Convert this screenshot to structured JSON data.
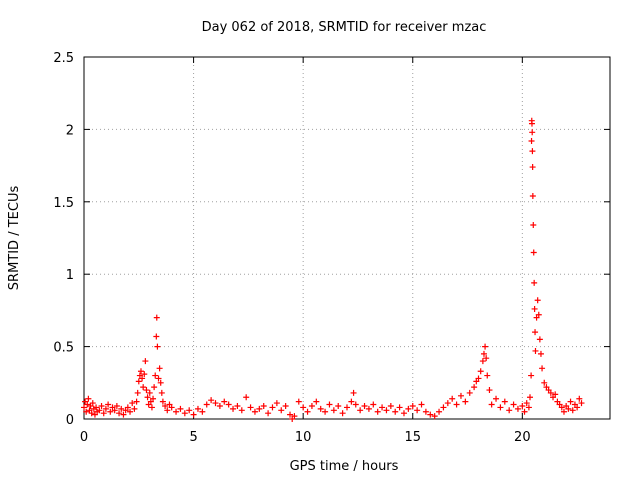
{
  "chart_data": {
    "type": "scatter",
    "title": "Day 062 of 2018, SRMTID for receiver mzac",
    "xlabel": "GPS time / hours",
    "ylabel": "SRMTID / TECUs",
    "xlim": [
      0,
      24
    ],
    "ylim": [
      0,
      2.5
    ],
    "grid": true,
    "marker": "+",
    "series_color": "#ff0000",
    "xticks": [
      0,
      5,
      10,
      15,
      20
    ],
    "xtick_labels": [
      "0",
      "5",
      "10",
      "15",
      "20"
    ],
    "yticks": [
      0,
      0.5,
      1,
      1.5,
      2,
      2.5
    ],
    "ytick_labels": [
      "0",
      "0.5",
      "1",
      "1.5",
      "2",
      "2.5"
    ],
    "series": [
      {
        "name": "SRMTID",
        "points": [
          [
            0.0,
            0.08
          ],
          [
            0.05,
            0.12
          ],
          [
            0.1,
            0.05
          ],
          [
            0.15,
            0.1
          ],
          [
            0.2,
            0.14
          ],
          [
            0.25,
            0.06
          ],
          [
            0.3,
            0.09
          ],
          [
            0.35,
            0.04
          ],
          [
            0.4,
            0.11
          ],
          [
            0.45,
            0.07
          ],
          [
            0.5,
            0.03
          ],
          [
            0.55,
            0.08
          ],
          [
            0.6,
            0.05
          ],
          [
            0.7,
            0.06
          ],
          [
            0.8,
            0.09
          ],
          [
            0.9,
            0.04
          ],
          [
            1.0,
            0.07
          ],
          [
            1.1,
            0.1
          ],
          [
            1.2,
            0.05
          ],
          [
            1.3,
            0.08
          ],
          [
            1.4,
            0.06
          ],
          [
            1.5,
            0.09
          ],
          [
            1.6,
            0.04
          ],
          [
            1.7,
            0.07
          ],
          [
            1.8,
            0.03
          ],
          [
            1.9,
            0.06
          ],
          [
            2.0,
            0.08
          ],
          [
            2.1,
            0.05
          ],
          [
            2.2,
            0.11
          ],
          [
            2.3,
            0.07
          ],
          [
            2.4,
            0.12
          ],
          [
            2.45,
            0.18
          ],
          [
            2.5,
            0.26
          ],
          [
            2.55,
            0.3
          ],
          [
            2.6,
            0.33
          ],
          [
            2.65,
            0.28
          ],
          [
            2.7,
            0.22
          ],
          [
            2.75,
            0.31
          ],
          [
            2.8,
            0.4
          ],
          [
            2.85,
            0.2
          ],
          [
            2.9,
            0.15
          ],
          [
            2.95,
            0.1
          ],
          [
            3.0,
            0.18
          ],
          [
            3.05,
            0.12
          ],
          [
            3.1,
            0.08
          ],
          [
            3.15,
            0.14
          ],
          [
            3.2,
            0.22
          ],
          [
            3.25,
            0.3
          ],
          [
            3.3,
            0.57
          ],
          [
            3.32,
            0.7
          ],
          [
            3.35,
            0.5
          ],
          [
            3.4,
            0.28
          ],
          [
            3.45,
            0.35
          ],
          [
            3.5,
            0.25
          ],
          [
            3.55,
            0.18
          ],
          [
            3.6,
            0.12
          ],
          [
            3.7,
            0.09
          ],
          [
            3.8,
            0.06
          ],
          [
            3.9,
            0.1
          ],
          [
            4.0,
            0.08
          ],
          [
            4.2,
            0.05
          ],
          [
            4.4,
            0.07
          ],
          [
            4.6,
            0.04
          ],
          [
            4.8,
            0.06
          ],
          [
            5.0,
            0.03
          ],
          [
            5.2,
            0.07
          ],
          [
            5.4,
            0.05
          ],
          [
            5.6,
            0.1
          ],
          [
            5.8,
            0.13
          ],
          [
            6.0,
            0.11
          ],
          [
            6.2,
            0.09
          ],
          [
            6.4,
            0.12
          ],
          [
            6.6,
            0.1
          ],
          [
            6.8,
            0.07
          ],
          [
            7.0,
            0.09
          ],
          [
            7.2,
            0.06
          ],
          [
            7.4,
            0.15
          ],
          [
            7.6,
            0.08
          ],
          [
            7.8,
            0.05
          ],
          [
            8.0,
            0.07
          ],
          [
            8.2,
            0.09
          ],
          [
            8.4,
            0.04
          ],
          [
            8.6,
            0.08
          ],
          [
            8.8,
            0.11
          ],
          [
            9.0,
            0.06
          ],
          [
            9.2,
            0.09
          ],
          [
            9.4,
            0.03
          ],
          [
            9.5,
            0.0
          ],
          [
            9.6,
            0.02
          ],
          [
            9.8,
            0.12
          ],
          [
            10.0,
            0.08
          ],
          [
            10.2,
            0.05
          ],
          [
            10.4,
            0.09
          ],
          [
            10.6,
            0.12
          ],
          [
            10.8,
            0.07
          ],
          [
            11.0,
            0.05
          ],
          [
            11.2,
            0.1
          ],
          [
            11.4,
            0.06
          ],
          [
            11.6,
            0.09
          ],
          [
            11.8,
            0.04
          ],
          [
            12.0,
            0.08
          ],
          [
            12.2,
            0.12
          ],
          [
            12.3,
            0.18
          ],
          [
            12.4,
            0.1
          ],
          [
            12.6,
            0.06
          ],
          [
            12.8,
            0.09
          ],
          [
            13.0,
            0.07
          ],
          [
            13.2,
            0.1
          ],
          [
            13.4,
            0.05
          ],
          [
            13.6,
            0.08
          ],
          [
            13.8,
            0.06
          ],
          [
            14.0,
            0.09
          ],
          [
            14.2,
            0.05
          ],
          [
            14.4,
            0.08
          ],
          [
            14.6,
            0.04
          ],
          [
            14.8,
            0.07
          ],
          [
            15.0,
            0.09
          ],
          [
            15.2,
            0.06
          ],
          [
            15.4,
            0.1
          ],
          [
            15.6,
            0.05
          ],
          [
            15.8,
            0.03
          ],
          [
            16.0,
            0.02
          ],
          [
            16.2,
            0.05
          ],
          [
            16.4,
            0.08
          ],
          [
            16.6,
            0.11
          ],
          [
            16.8,
            0.14
          ],
          [
            17.0,
            0.1
          ],
          [
            17.2,
            0.16
          ],
          [
            17.4,
            0.12
          ],
          [
            17.6,
            0.18
          ],
          [
            17.8,
            0.22
          ],
          [
            17.9,
            0.26
          ],
          [
            18.0,
            0.28
          ],
          [
            18.1,
            0.33
          ],
          [
            18.2,
            0.4
          ],
          [
            18.25,
            0.45
          ],
          [
            18.3,
            0.5
          ],
          [
            18.35,
            0.42
          ],
          [
            18.4,
            0.3
          ],
          [
            18.5,
            0.2
          ],
          [
            18.6,
            0.1
          ],
          [
            18.8,
            0.14
          ],
          [
            19.0,
            0.08
          ],
          [
            19.2,
            0.12
          ],
          [
            19.4,
            0.06
          ],
          [
            19.6,
            0.1
          ],
          [
            19.8,
            0.07
          ],
          [
            20.0,
            0.09
          ],
          [
            20.1,
            0.05
          ],
          [
            20.2,
            0.11
          ],
          [
            20.3,
            0.08
          ],
          [
            20.35,
            0.15
          ],
          [
            20.4,
            0.3
          ],
          [
            20.42,
            1.92
          ],
          [
            20.43,
            2.06
          ],
          [
            20.44,
            2.04
          ],
          [
            20.45,
            1.98
          ],
          [
            20.46,
            1.85
          ],
          [
            20.47,
            1.74
          ],
          [
            20.48,
            1.54
          ],
          [
            20.5,
            1.34
          ],
          [
            20.52,
            1.15
          ],
          [
            20.54,
            0.94
          ],
          [
            20.56,
            0.76
          ],
          [
            20.58,
            0.6
          ],
          [
            20.6,
            0.47
          ],
          [
            20.65,
            0.7
          ],
          [
            20.7,
            0.82
          ],
          [
            20.75,
            0.72
          ],
          [
            20.8,
            0.55
          ],
          [
            20.85,
            0.45
          ],
          [
            20.9,
            0.35
          ],
          [
            21.0,
            0.25
          ],
          [
            21.1,
            0.22
          ],
          [
            21.2,
            0.2
          ],
          [
            21.3,
            0.18
          ],
          [
            21.4,
            0.15
          ],
          [
            21.5,
            0.17
          ],
          [
            21.6,
            0.12
          ],
          [
            21.7,
            0.1
          ],
          [
            21.8,
            0.08
          ],
          [
            21.9,
            0.05
          ],
          [
            22.0,
            0.09
          ],
          [
            22.1,
            0.07
          ],
          [
            22.2,
            0.12
          ],
          [
            22.3,
            0.06
          ],
          [
            22.4,
            0.1
          ],
          [
            22.5,
            0.08
          ],
          [
            22.6,
            0.14
          ],
          [
            22.7,
            0.11
          ]
        ]
      }
    ]
  }
}
